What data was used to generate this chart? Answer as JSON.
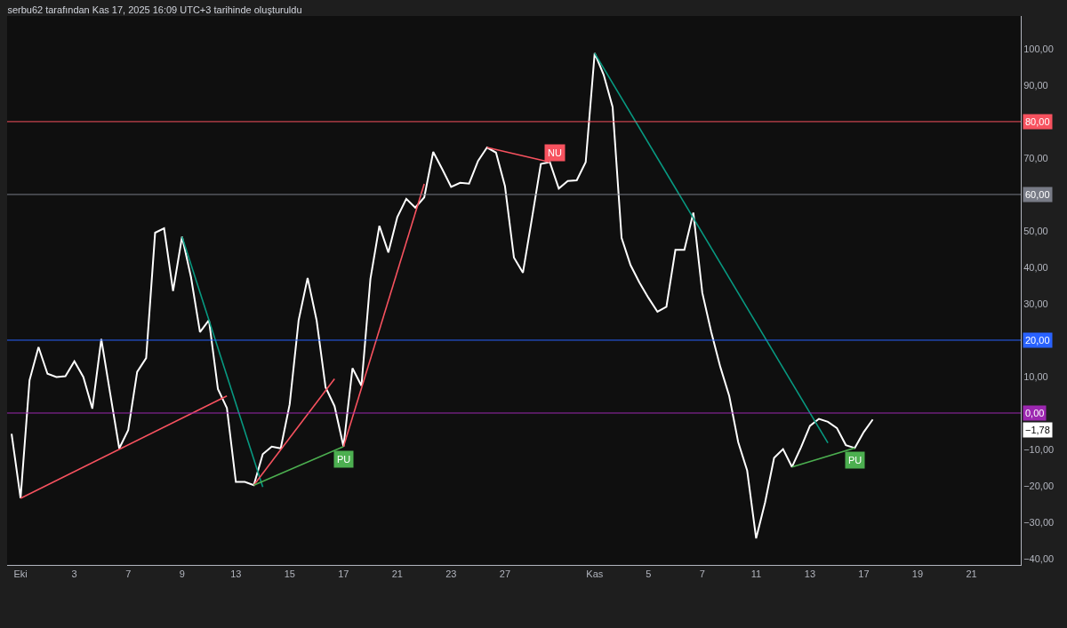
{
  "chart_data": {
    "type": "line",
    "title": "serbu62 tarafından Kas 17, 2025 16:09 UTC+3 tarihinde oluşturuldu",
    "categories": [
      null,
      "Eki",
      null,
      null,
      null,
      null,
      null,
      "3",
      null,
      null,
      null,
      null,
      null,
      "7",
      null,
      null,
      null,
      null,
      null,
      "9",
      null,
      null,
      null,
      null,
      null,
      "13",
      null,
      null,
      null,
      null,
      null,
      "15",
      null,
      null,
      null,
      null,
      null,
      "17",
      null,
      null,
      null,
      null,
      null,
      "21",
      null,
      null,
      null,
      null,
      null,
      "23",
      null,
      null,
      null,
      null,
      null,
      "27",
      null,
      null,
      null,
      null,
      null,
      null,
      null,
      null,
      null,
      "Kas",
      null,
      null,
      null,
      null,
      null,
      "5",
      null,
      null,
      null,
      null,
      null,
      "7",
      null,
      null,
      null,
      null,
      null,
      "11",
      null,
      null,
      null,
      null,
      null,
      "13",
      null,
      null,
      null,
      null,
      null,
      "17",
      null,
      null,
      null,
      null,
      null,
      "19",
      null,
      null,
      null,
      null,
      null,
      "21",
      null,
      null,
      null,
      null,
      null
    ],
    "ylim": [
      -41.7,
      109
    ],
    "yticks": [
      {
        "value": 100,
        "label": "100,00"
      },
      {
        "value": 90,
        "label": "90,00"
      },
      {
        "value": 80,
        "label": null
      },
      {
        "value": 70,
        "label": "70,00"
      },
      {
        "value": 60,
        "label": null
      },
      {
        "value": 50,
        "label": "50,00"
      },
      {
        "value": 40,
        "label": "40,00"
      },
      {
        "value": 30,
        "label": "30,00"
      },
      {
        "value": 20,
        "label": null
      },
      {
        "value": 10,
        "label": "10,00"
      },
      {
        "value": 0,
        "label": null
      },
      {
        "value": -10,
        "label": "−10,00"
      },
      {
        "value": -20,
        "label": "−20,00"
      },
      {
        "value": -30,
        "label": "−30,00"
      },
      {
        "value": -40,
        "label": "−40,00"
      }
    ],
    "ref_lines": [
      {
        "axis": "y",
        "value": 80,
        "label": "80,00",
        "color": "#f7525f"
      },
      {
        "axis": "y",
        "value": 60,
        "label": "60,00",
        "color": "#787b86"
      },
      {
        "axis": "y",
        "value": 20,
        "label": "20,00",
        "color": "#2962ff"
      },
      {
        "axis": "y",
        "value": 0,
        "label": "0,00",
        "color": "#9c27b0"
      }
    ],
    "annotations": [
      "−1,78"
    ],
    "series": [
      {
        "color": "#ffffff",
        "values": [
          -5.7,
          -23.4,
          9.0,
          18.1,
          10.8,
          9.9,
          10.1,
          14.2,
          9.9,
          1.2,
          20.3,
          5.2,
          -9.7,
          -4.7,
          11.3,
          15.1,
          49.5,
          50.7,
          33.5,
          48.4,
          37.3,
          22.2,
          25.5,
          6.6,
          1.4,
          -18.9,
          -18.9,
          -19.8,
          -11.3,
          -9.2,
          -9.7,
          2.4,
          25.5,
          37.1,
          25.5,
          7.1,
          1.9,
          -9.2,
          12.3,
          7.5,
          36.8,
          51.4,
          44.1,
          53.8,
          58.8,
          56.4,
          59.2,
          71.7,
          67.0,
          62.1,
          63.2,
          63.0,
          69.2,
          72.9,
          71.5,
          62.3,
          42.7,
          38.5,
          53.3,
          68.4,
          68.9,
          61.6,
          63.7,
          63.9,
          68.9,
          98.8,
          92.9,
          84.0,
          48.1,
          40.6,
          35.8,
          31.6,
          27.8,
          29.2,
          44.8,
          44.8,
          55.0,
          33.0,
          22.2,
          12.7,
          4.7,
          -8.0,
          -15.8,
          -34.4,
          -24.5,
          -12.3,
          -9.9,
          -14.8,
          -9.4,
          -3.5,
          -1.6,
          -2.4,
          -4.1,
          -8.8,
          -9.6,
          -5.2,
          -1.78,
          null,
          null,
          null,
          null,
          null,
          null,
          null,
          null,
          null,
          null,
          null,
          null,
          null,
          null,
          null,
          null
        ]
      },
      {
        "color": "#f7525f",
        "values": [
          null,
          -23.4,
          null,
          null,
          null,
          null,
          null,
          null,
          null,
          null,
          null,
          null,
          null,
          null,
          null,
          null,
          null,
          null,
          null,
          null,
          null,
          null,
          null,
          null,
          4.7,
          null,
          null,
          null,
          null,
          null,
          null,
          null,
          null,
          null,
          null,
          null,
          null,
          null,
          null,
          null,
          null,
          null,
          null,
          null,
          null,
          null,
          null,
          null,
          null,
          null,
          null,
          null,
          null,
          null,
          null,
          null,
          null,
          null,
          null,
          null,
          null,
          null,
          null,
          null,
          null,
          null,
          null,
          null,
          null,
          null,
          null,
          null,
          null,
          null,
          null,
          null,
          null,
          null,
          null,
          null,
          null,
          null,
          null,
          null,
          null,
          null,
          null,
          null,
          null,
          null,
          null,
          null,
          null,
          null,
          null,
          null,
          null,
          null,
          null,
          null,
          null,
          null,
          null,
          null,
          null,
          null,
          null,
          null,
          null,
          null,
          null,
          null,
          null
        ]
      },
      {
        "color": "#089981",
        "values": [
          null,
          null,
          null,
          null,
          null,
          null,
          null,
          null,
          null,
          null,
          null,
          null,
          null,
          null,
          null,
          null,
          null,
          null,
          null,
          48.4,
          null,
          null,
          null,
          null,
          null,
          null,
          null,
          null,
          -20.3,
          null,
          null,
          null,
          null,
          null,
          null,
          null,
          null,
          null,
          null,
          null,
          null,
          null,
          null,
          null,
          null,
          null,
          null,
          null,
          null,
          null,
          null,
          null,
          null,
          null,
          null,
          null,
          null,
          null,
          null,
          null,
          null,
          null,
          null,
          null,
          null,
          null,
          null,
          null,
          null,
          null,
          null,
          null,
          null,
          null,
          null,
          null,
          null,
          null,
          null,
          null,
          null,
          null,
          null,
          null,
          null,
          null,
          null,
          null,
          null,
          null,
          null,
          null,
          null,
          null,
          null,
          null,
          null,
          null,
          null,
          null,
          null,
          null,
          null,
          null,
          null,
          null,
          null,
          null,
          null,
          null,
          null,
          null,
          null
        ]
      },
      {
        "color": "#f7525f",
        "values": [
          null,
          null,
          null,
          null,
          null,
          null,
          null,
          null,
          null,
          null,
          null,
          null,
          null,
          null,
          null,
          null,
          null,
          null,
          null,
          null,
          null,
          null,
          null,
          null,
          null,
          null,
          null,
          -19.8,
          null,
          null,
          null,
          null,
          null,
          null,
          null,
          null,
          9.4,
          null,
          null,
          null,
          null,
          null,
          null,
          null,
          null,
          null,
          null,
          null,
          null,
          null,
          null,
          null,
          null,
          null,
          null,
          null,
          null,
          null,
          null,
          null,
          null,
          null,
          null,
          null,
          null,
          null,
          null,
          null,
          null,
          null,
          null,
          null,
          null,
          null,
          null,
          null,
          null,
          null,
          null,
          null,
          null,
          null,
          null,
          null,
          null,
          null,
          null,
          null,
          null,
          null,
          null,
          null,
          null,
          null,
          null,
          null,
          null,
          null,
          null,
          null,
          null,
          null,
          null,
          null,
          null,
          null,
          null,
          null,
          null,
          null,
          null,
          null,
          null
        ]
      },
      {
        "name": "PU",
        "color": "#4caf50",
        "values": [
          null,
          null,
          null,
          null,
          null,
          null,
          null,
          null,
          null,
          null,
          null,
          null,
          null,
          null,
          null,
          null,
          null,
          null,
          null,
          null,
          null,
          null,
          null,
          null,
          null,
          null,
          null,
          -19.8,
          null,
          null,
          null,
          null,
          null,
          null,
          null,
          null,
          null,
          -9.2,
          null,
          null,
          null,
          null,
          null,
          null,
          null,
          null,
          null,
          null,
          null,
          null,
          null,
          null,
          null,
          null,
          null,
          null,
          null,
          null,
          null,
          null,
          null,
          null,
          null,
          null,
          null,
          null,
          null,
          null,
          null,
          null,
          null,
          null,
          null,
          null,
          null,
          null,
          null,
          null,
          null,
          null,
          null,
          null,
          null,
          null,
          null,
          null,
          null,
          null,
          null,
          null,
          null,
          null,
          null,
          null,
          null,
          null,
          null,
          null,
          null,
          null,
          null,
          null,
          null,
          null,
          null,
          null,
          null,
          null,
          null,
          null,
          null,
          null,
          null
        ]
      },
      {
        "color": "#f7525f",
        "values": [
          null,
          null,
          null,
          null,
          null,
          null,
          null,
          null,
          null,
          null,
          null,
          null,
          null,
          null,
          null,
          null,
          null,
          null,
          null,
          null,
          null,
          null,
          null,
          null,
          null,
          null,
          null,
          null,
          null,
          null,
          null,
          null,
          null,
          null,
          null,
          null,
          null,
          -9.2,
          null,
          null,
          null,
          null,
          null,
          null,
          null,
          null,
          62.9,
          null,
          null,
          null,
          null,
          null,
          null,
          null,
          null,
          null,
          null,
          null,
          null,
          null,
          null,
          null,
          null,
          null,
          null,
          null,
          null,
          null,
          null,
          null,
          null,
          null,
          null,
          null,
          null,
          null,
          null,
          null,
          null,
          null,
          null,
          null,
          null,
          null,
          null,
          null,
          null,
          null,
          null,
          null,
          null,
          null,
          null,
          null,
          null,
          null,
          null,
          null,
          null,
          null,
          null,
          null,
          null,
          null,
          null,
          null,
          null,
          null,
          null,
          null,
          null,
          null,
          null
        ]
      },
      {
        "name": "NU",
        "color": "#f7525f",
        "values": [
          null,
          null,
          null,
          null,
          null,
          null,
          null,
          null,
          null,
          null,
          null,
          null,
          null,
          null,
          null,
          null,
          null,
          null,
          null,
          null,
          null,
          null,
          null,
          null,
          null,
          null,
          null,
          null,
          null,
          null,
          null,
          null,
          null,
          null,
          null,
          null,
          null,
          null,
          null,
          null,
          null,
          null,
          null,
          null,
          null,
          null,
          null,
          null,
          null,
          null,
          null,
          null,
          null,
          72.9,
          null,
          null,
          null,
          null,
          null,
          null,
          68.9,
          null,
          null,
          null,
          null,
          null,
          null,
          null,
          null,
          null,
          null,
          null,
          null,
          null,
          null,
          null,
          null,
          null,
          null,
          null,
          null,
          null,
          null,
          null,
          null,
          null,
          null,
          null,
          null,
          null,
          null,
          null,
          null,
          null,
          null,
          null,
          null,
          null,
          null,
          null,
          null,
          null,
          null,
          null,
          null,
          null,
          null,
          null,
          null,
          null,
          null,
          null,
          null
        ]
      },
      {
        "color": "#089981",
        "values": [
          null,
          null,
          null,
          null,
          null,
          null,
          null,
          null,
          null,
          null,
          null,
          null,
          null,
          null,
          null,
          null,
          null,
          null,
          null,
          null,
          null,
          null,
          null,
          null,
          null,
          null,
          null,
          null,
          null,
          null,
          null,
          null,
          null,
          null,
          null,
          null,
          null,
          null,
          null,
          null,
          null,
          null,
          null,
          null,
          null,
          null,
          null,
          null,
          null,
          null,
          null,
          null,
          null,
          null,
          null,
          null,
          null,
          null,
          null,
          null,
          null,
          null,
          null,
          null,
          null,
          98.8,
          null,
          null,
          null,
          null,
          null,
          null,
          null,
          null,
          null,
          null,
          null,
          null,
          null,
          null,
          null,
          null,
          null,
          null,
          null,
          null,
          null,
          null,
          null,
          null,
          null,
          -8.2,
          null,
          null,
          null,
          null,
          null,
          null,
          null,
          null,
          null,
          null,
          null,
          null,
          null,
          null,
          null,
          null,
          null,
          null,
          null,
          null,
          null
        ]
      },
      {
        "name": "PU",
        "color": "#4caf50",
        "values": [
          null,
          null,
          null,
          null,
          null,
          null,
          null,
          null,
          null,
          null,
          null,
          null,
          null,
          null,
          null,
          null,
          null,
          null,
          null,
          null,
          null,
          null,
          null,
          null,
          null,
          null,
          null,
          null,
          null,
          null,
          null,
          null,
          null,
          null,
          null,
          null,
          null,
          null,
          null,
          null,
          null,
          null,
          null,
          null,
          null,
          null,
          null,
          null,
          null,
          null,
          null,
          null,
          null,
          null,
          null,
          null,
          null,
          null,
          null,
          null,
          null,
          null,
          null,
          null,
          null,
          null,
          null,
          null,
          null,
          null,
          null,
          null,
          null,
          null,
          null,
          null,
          null,
          null,
          null,
          null,
          null,
          null,
          null,
          null,
          null,
          null,
          null,
          -14.8,
          null,
          null,
          null,
          null,
          null,
          null,
          -9.6,
          null,
          null,
          null,
          null,
          null,
          null,
          null,
          null,
          null,
          null,
          null,
          null,
          null,
          null,
          null,
          null,
          null,
          null
        ]
      }
    ]
  }
}
